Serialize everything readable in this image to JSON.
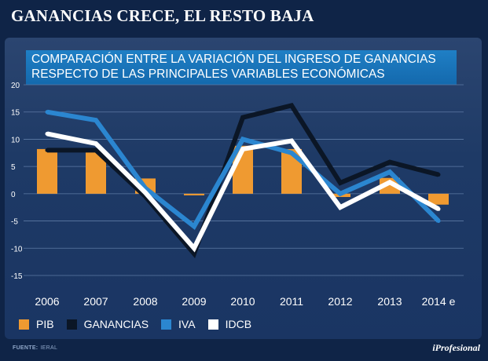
{
  "headline": "GANANCIAS CRECE, EL RESTO BAJA",
  "chart_data": {
    "type": "bar",
    "title_lines": [
      "COMPARACIÓN ENTRE LA VARIACIÓN DEL INGRESO DE GANANCIAS",
      "RESPECTO DE LAS PRINCIPALES VARIABLES ECONÓMICAS"
    ],
    "categories": [
      "2006",
      "2007",
      "2008",
      "2009",
      "2010",
      "2011",
      "2012",
      "2013",
      "2014 e"
    ],
    "ylim": [
      -15,
      20
    ],
    "yticks": [
      "20",
      "15",
      "10",
      "5",
      "0",
      "-5",
      "-10",
      "-15"
    ],
    "ytick_values": [
      20,
      15,
      10,
      5,
      0,
      -5,
      -10,
      -15
    ],
    "grid": true,
    "legend_position": "bottom",
    "series": [
      {
        "name": "PIB",
        "kind": "bar",
        "color": "#ef9a31",
        "values": [
          8.2,
          7.8,
          2.8,
          -0.3,
          8.8,
          8.2,
          -0.6,
          2.9,
          -2.0
        ]
      },
      {
        "name": "GANANCIAS",
        "kind": "line",
        "color": "#0b1626",
        "values": [
          8.0,
          8.0,
          -0.5,
          -11.0,
          14.0,
          16.2,
          2.0,
          5.8,
          3.5
        ]
      },
      {
        "name": "IVA",
        "kind": "line",
        "color": "#2b86d0",
        "values": [
          15.0,
          13.5,
          1.0,
          -6.0,
          10.0,
          7.5,
          0.0,
          4.0,
          -5.0
        ]
      },
      {
        "name": "IDCB",
        "kind": "line",
        "color": "#ffffff",
        "values": [
          11.0,
          9.2,
          0.2,
          -10.0,
          8.2,
          9.7,
          -2.5,
          2.1,
          -2.8
        ]
      }
    ]
  },
  "footer": {
    "source_label": "FUENTE:",
    "source_value": "IERAL"
  },
  "logo": "iProfesional"
}
